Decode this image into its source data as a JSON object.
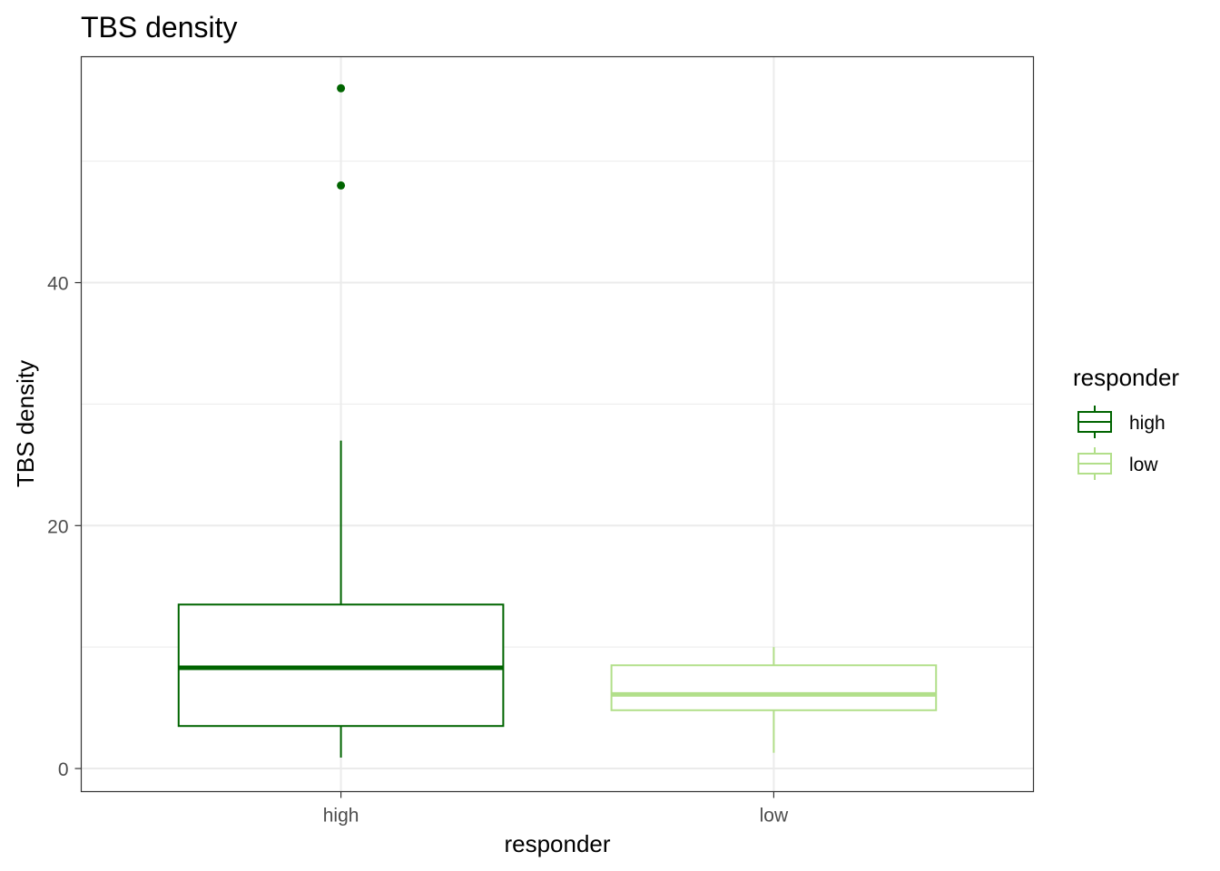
{
  "chart_data": {
    "type": "boxplot",
    "title": "TBS density",
    "xlabel": "responder",
    "ylabel": "TBS density",
    "categories": [
      "high",
      "low"
    ],
    "ylim": [
      -1.9,
      58.6
    ],
    "y_ticks": [
      0,
      20,
      40
    ],
    "y_tick_labels": [
      "0",
      "20",
      "40"
    ],
    "grid": true,
    "legend": {
      "title": "responder",
      "position": "right",
      "entries": [
        {
          "label": "high",
          "color": "#006400"
        },
        {
          "label": "low",
          "color": "#b2df8a"
        }
      ]
    },
    "boxes": [
      {
        "category": "high",
        "color": "#006400",
        "whisker_low": 0.9,
        "q1": 3.5,
        "median": 8.3,
        "q3": 13.5,
        "whisker_high": 27.0,
        "outliers": [
          48.0,
          56.0
        ]
      },
      {
        "category": "low",
        "color": "#b2df8a",
        "whisker_low": 1.3,
        "q1": 4.8,
        "median": 6.1,
        "q3": 8.5,
        "whisker_high": 10.0,
        "outliers": []
      }
    ]
  }
}
